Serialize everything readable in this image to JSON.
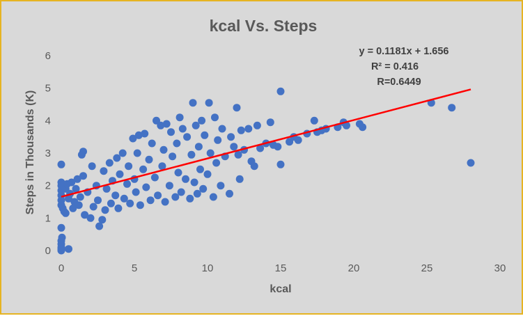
{
  "chart_data": {
    "type": "scatter",
    "title": "kcal Vs. Steps",
    "xlabel": "kcal",
    "ylabel": "Steps in Thousands (K)",
    "xlim": [
      0,
      30
    ],
    "ylim": [
      0,
      6
    ],
    "xticks": [
      "0",
      "5",
      "10",
      "15",
      "20",
      "25",
      "30"
    ],
    "yticks": [
      "0",
      "1",
      "2",
      "3",
      "4",
      "5",
      "6"
    ],
    "grid": false,
    "legend": "none",
    "colors": {
      "points": "#4472c4",
      "trendline": "#ff0000",
      "background": "#d9d9d9",
      "border": "#e6b422"
    },
    "annotations": [
      "y = 0.1181x + 1.656",
      "R² = 0.416",
      "R=0.6449"
    ],
    "trendline": {
      "slope": 0.1181,
      "intercept": 1.656,
      "x_range": [
        0,
        28
      ]
    },
    "points": [
      [
        0,
        0
      ],
      [
        0,
        0.05
      ],
      [
        0,
        0.1
      ],
      [
        0,
        0.2
      ],
      [
        0,
        0.3
      ],
      [
        0.05,
        0.4
      ],
      [
        0,
        0.7
      ],
      [
        0.5,
        0.05
      ],
      [
        0,
        2.65
      ],
      [
        0,
        1.4
      ],
      [
        0,
        1.55
      ],
      [
        0,
        1.7
      ],
      [
        0,
        1.85
      ],
      [
        0,
        2.0
      ],
      [
        0,
        2.1
      ],
      [
        0.1,
        1.3
      ],
      [
        0.2,
        1.2
      ],
      [
        0.3,
        1.15
      ],
      [
        0.3,
        1.9
      ],
      [
        0.4,
        2.05
      ],
      [
        0.5,
        1.6
      ],
      [
        0.6,
        1.75
      ],
      [
        0.7,
        2.1
      ],
      [
        0.8,
        1.3
      ],
      [
        0.9,
        1.5
      ],
      [
        1.0,
        1.9
      ],
      [
        1.1,
        2.2
      ],
      [
        1.2,
        1.4
      ],
      [
        1.3,
        1.65
      ],
      [
        1.4,
        2.95
      ],
      [
        1.5,
        3.05
      ],
      [
        1.5,
        2.3
      ],
      [
        1.6,
        1.1
      ],
      [
        1.8,
        1.8
      ],
      [
        2.0,
        1.0
      ],
      [
        2.1,
        2.6
      ],
      [
        2.2,
        1.35
      ],
      [
        2.4,
        2.0
      ],
      [
        2.5,
        1.55
      ],
      [
        2.6,
        0.75
      ],
      [
        2.8,
        0.95
      ],
      [
        2.9,
        2.45
      ],
      [
        3.0,
        1.25
      ],
      [
        3.1,
        1.9
      ],
      [
        3.3,
        2.7
      ],
      [
        3.4,
        1.45
      ],
      [
        3.5,
        2.15
      ],
      [
        3.7,
        1.7
      ],
      [
        3.8,
        2.85
      ],
      [
        3.9,
        1.3
      ],
      [
        4.0,
        2.35
      ],
      [
        4.2,
        3.0
      ],
      [
        4.3,
        1.6
      ],
      [
        4.5,
        2.05
      ],
      [
        4.6,
        2.6
      ],
      [
        4.7,
        1.45
      ],
      [
        4.9,
        3.45
      ],
      [
        5.0,
        2.2
      ],
      [
        5.1,
        1.8
      ],
      [
        5.2,
        3.0
      ],
      [
        5.3,
        3.55
      ],
      [
        5.4,
        1.4
      ],
      [
        5.6,
        2.5
      ],
      [
        5.7,
        3.6
      ],
      [
        5.8,
        1.95
      ],
      [
        6.0,
        2.8
      ],
      [
        6.1,
        1.55
      ],
      [
        6.2,
        3.3
      ],
      [
        6.4,
        2.25
      ],
      [
        6.5,
        4.0
      ],
      [
        6.6,
        1.7
      ],
      [
        6.8,
        3.85
      ],
      [
        6.9,
        2.6
      ],
      [
        7.0,
        3.1
      ],
      [
        7.1,
        1.5
      ],
      [
        7.2,
        3.9
      ],
      [
        7.4,
        2.0
      ],
      [
        7.5,
        3.65
      ],
      [
        7.6,
        2.9
      ],
      [
        7.8,
        1.65
      ],
      [
        7.9,
        3.3
      ],
      [
        8.0,
        2.4
      ],
      [
        8.1,
        4.1
      ],
      [
        8.2,
        1.8
      ],
      [
        8.3,
        3.75
      ],
      [
        8.5,
        2.2
      ],
      [
        8.6,
        3.5
      ],
      [
        8.8,
        1.6
      ],
      [
        8.9,
        2.95
      ],
      [
        9.0,
        4.55
      ],
      [
        9.1,
        2.1
      ],
      [
        9.2,
        3.85
      ],
      [
        9.3,
        1.75
      ],
      [
        9.4,
        3.2
      ],
      [
        9.5,
        2.5
      ],
      [
        9.6,
        4.0
      ],
      [
        9.7,
        1.9
      ],
      [
        9.8,
        3.55
      ],
      [
        10.0,
        2.35
      ],
      [
        10.1,
        4.55
      ],
      [
        10.2,
        3.0
      ],
      [
        10.4,
        1.65
      ],
      [
        10.5,
        4.1
      ],
      [
        10.6,
        2.7
      ],
      [
        10.7,
        3.4
      ],
      [
        10.9,
        2.0
      ],
      [
        11.0,
        3.75
      ],
      [
        11.2,
        2.9
      ],
      [
        11.5,
        1.75
      ],
      [
        11.6,
        3.5
      ],
      [
        11.8,
        3.2
      ],
      [
        12.0,
        4.4
      ],
      [
        12.1,
        2.95
      ],
      [
        12.2,
        2.2
      ],
      [
        12.3,
        3.7
      ],
      [
        12.5,
        3.1
      ],
      [
        12.8,
        3.75
      ],
      [
        13.0,
        2.75
      ],
      [
        13.2,
        2.6
      ],
      [
        13.4,
        3.85
      ],
      [
        13.6,
        3.15
      ],
      [
        14.0,
        3.3
      ],
      [
        14.3,
        3.95
      ],
      [
        14.5,
        3.25
      ],
      [
        14.8,
        3.2
      ],
      [
        15.0,
        4.9
      ],
      [
        15.0,
        2.65
      ],
      [
        15.6,
        3.35
      ],
      [
        15.9,
        3.5
      ],
      [
        16.2,
        3.4
      ],
      [
        16.8,
        3.6
      ],
      [
        17.3,
        4.0
      ],
      [
        17.5,
        3.65
      ],
      [
        17.8,
        3.7
      ],
      [
        18.1,
        3.75
      ],
      [
        18.9,
        3.8
      ],
      [
        19.3,
        3.95
      ],
      [
        19.5,
        3.85
      ],
      [
        20.4,
        3.9
      ],
      [
        20.6,
        3.8
      ],
      [
        25.3,
        4.55
      ],
      [
        26.7,
        4.4
      ],
      [
        28.0,
        2.7
      ]
    ]
  }
}
